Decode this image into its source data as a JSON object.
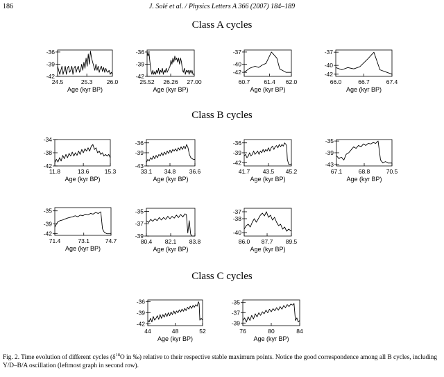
{
  "header": {
    "page_number": "186",
    "journal_ref": "J. Solé et al. / Physics Letters A 366 (2007) 184–189"
  },
  "sections": [
    {
      "id": "A",
      "title": "Class A cycles"
    },
    {
      "id": "B",
      "title": "Class B cycles"
    },
    {
      "id": "C",
      "title": "Class C cycles"
    }
  ],
  "caption": {
    "lead": "Fig. 2. Time evolution of different cycles (δ",
    "sup": "18",
    "tail": "O in ‰) relative to their respective stable maximum points. Notice the good correspondence among all B cycles, including Y/D–B/A oscillation (leftmost graph in second row)."
  },
  "chart_data": [
    {
      "type": "line",
      "section": "A",
      "xlabel": "Age (kyr BP)",
      "xlim": [
        24.5,
        26.0
      ],
      "ylim": [
        -42,
        -35.5
      ],
      "xticks": [
        24.5,
        25.3,
        26.0
      ],
      "xtick_labels": [
        "24.5",
        "25.3",
        "26.0"
      ],
      "yticks": [
        -36,
        -39,
        -42
      ],
      "ytick_labels": [
        "-36",
        "-39",
        "-42"
      ],
      "x": [
        24.5,
        24.53,
        24.56,
        24.59,
        24.62,
        24.65,
        24.68,
        24.71,
        24.74,
        24.77,
        24.8,
        24.83,
        24.86,
        24.89,
        24.92,
        24.95,
        24.98,
        25.01,
        25.04,
        25.07,
        25.1,
        25.13,
        25.16,
        25.19,
        25.22,
        25.25,
        25.28,
        25.31,
        25.34,
        25.37,
        25.4,
        25.43,
        25.46,
        25.49,
        25.52,
        25.55,
        25.58,
        25.61,
        25.64,
        25.67,
        25.7,
        25.73,
        25.76,
        25.79,
        25.82,
        25.85,
        25.88,
        25.91,
        25.94,
        25.97,
        26.0
      ],
      "y": [
        -39.5,
        -40.5,
        -41.5,
        -40.5,
        -39.5,
        -41.5,
        -40.5,
        -39.5,
        -41.5,
        -40,
        -39.5,
        -41,
        -40.5,
        -39.5,
        -41.5,
        -40,
        -39.5,
        -41,
        -40,
        -39.5,
        -41,
        -40.5,
        -39,
        -40.5,
        -38.5,
        -40,
        -37.5,
        -39.5,
        -36.5,
        -39,
        -35.8,
        -37.5,
        -38.5,
        -39.5,
        -40.5,
        -39,
        -40.5,
        -39.5,
        -41,
        -40,
        -39.5,
        -40.8,
        -39.8,
        -41,
        -40,
        -40.8,
        -41,
        -40.5,
        -41.5,
        -41,
        -41.5
      ]
    },
    {
      "type": "line",
      "section": "A",
      "xlabel": "Age (kyr BP)",
      "xlim": [
        25.52,
        27.0
      ],
      "ylim": [
        -42,
        -35.5
      ],
      "xticks": [
        25.52,
        26.26,
        27.0
      ],
      "xtick_labels": [
        "25.52",
        "26.26",
        "27.00"
      ],
      "yticks": [
        -36,
        -39,
        -42
      ],
      "ytick_labels": [
        "-36",
        "-39",
        "-42"
      ],
      "x": [
        25.52,
        25.55,
        25.58,
        25.61,
        25.64,
        25.67,
        25.7,
        25.73,
        25.76,
        25.79,
        25.82,
        25.85,
        25.88,
        25.91,
        25.94,
        25.97,
        26.0,
        26.03,
        26.06,
        26.09,
        26.12,
        26.15,
        26.18,
        26.21,
        26.24,
        26.27,
        26.3,
        26.33,
        26.36,
        26.39,
        26.42,
        26.45,
        26.48,
        26.51,
        26.54,
        26.57,
        26.6,
        26.63,
        26.66,
        26.69,
        26.72,
        26.75,
        26.78,
        26.81,
        26.84,
        26.87,
        26.9,
        26.93,
        26.96,
        27.0
      ],
      "y": [
        -36,
        -37,
        -36.2,
        -38.5,
        -40.5,
        -41.5,
        -40.5,
        -41.5,
        -40.8,
        -41.5,
        -40.5,
        -41.2,
        -40,
        -41.5,
        -40.5,
        -41,
        -40,
        -41.5,
        -40.5,
        -41,
        -40,
        -41,
        -40.5,
        -40,
        -39.5,
        -38,
        -39,
        -37.5,
        -38.5,
        -37,
        -38,
        -37.5,
        -38.5,
        -37.5,
        -39,
        -37.5,
        -38.5,
        -40.5,
        -41,
        -40,
        -41.5,
        -40.5,
        -41,
        -40.5,
        -41.5,
        -40.5,
        -41.2,
        -40.5,
        -41.5,
        -41.5
      ]
    },
    {
      "type": "line",
      "section": "A",
      "xlabel": "Age (kyr BP)",
      "xlim": [
        60.7,
        62.0
      ],
      "ylim": [
        -43,
        -36.5
      ],
      "xticks": [
        60.7,
        61.4,
        62.0
      ],
      "xtick_labels": [
        "60.7",
        "61.4",
        "62.0"
      ],
      "yticks": [
        -37,
        -40,
        -42
      ],
      "ytick_labels": [
        "-37",
        "-40",
        "-42"
      ],
      "x": [
        60.7,
        60.85,
        61.0,
        61.1,
        61.2,
        61.3,
        61.45,
        61.5,
        61.6,
        61.68,
        61.75,
        61.85,
        62.0
      ],
      "y": [
        -42,
        -41,
        -40.5,
        -40.8,
        -40.2,
        -39.8,
        -37,
        -37.5,
        -38.5,
        -41.2,
        -41.5,
        -42,
        -42
      ]
    },
    {
      "type": "line",
      "section": "A",
      "xlabel": "Age (kyr BP)",
      "xlim": [
        66.0,
        67.4
      ],
      "ylim": [
        -42.5,
        -36.5
      ],
      "xticks": [
        66.0,
        66.7,
        67.4
      ],
      "xtick_labels": [
        "66.0",
        "66.7",
        "67.4"
      ],
      "yticks": [
        -37,
        -40,
        -42
      ],
      "ytick_labels": [
        "-37",
        "-40",
        "-42"
      ],
      "x": [
        66.0,
        66.15,
        66.3,
        66.45,
        66.6,
        66.8,
        66.95,
        67.1,
        67.25,
        67.4
      ],
      "y": [
        -40.5,
        -41,
        -40.5,
        -40.8,
        -40.3,
        -38.5,
        -37,
        -41,
        -41.5,
        -42
      ]
    },
    {
      "type": "line",
      "section": "B",
      "xlabel": "Age (kyr BP)",
      "xlim": [
        11.8,
        15.3
      ],
      "ylim": [
        -42,
        -34
      ],
      "xticks": [
        11.8,
        13.6,
        15.3
      ],
      "xtick_labels": [
        "11.8",
        "13.6",
        "15.3"
      ],
      "yticks": [
        -34,
        -38,
        -42
      ],
      "ytick_labels": [
        "-34",
        "-38",
        "-42"
      ],
      "x": [
        11.8,
        11.9,
        12.0,
        12.1,
        12.2,
        12.3,
        12.4,
        12.5,
        12.6,
        12.7,
        12.8,
        12.9,
        13.0,
        13.1,
        13.2,
        13.3,
        13.4,
        13.5,
        13.6,
        13.7,
        13.8,
        13.9,
        14.0,
        14.1,
        14.2,
        14.3,
        14.4,
        14.5,
        14.6,
        14.7,
        14.8,
        14.9,
        15.0,
        15.1,
        15.2,
        15.3
      ],
      "y": [
        -41,
        -40,
        -40.8,
        -39.5,
        -40.5,
        -38.8,
        -39.8,
        -38.5,
        -39.5,
        -38.2,
        -39,
        -37.8,
        -39,
        -38,
        -38.8,
        -37.5,
        -38.5,
        -37,
        -38,
        -36.8,
        -37.5,
        -36.5,
        -37.5,
        -36,
        -35.5,
        -37,
        -36.5,
        -38,
        -37.5,
        -38.5,
        -38,
        -39,
        -38.5,
        -39,
        -38.5,
        -39.5
      ]
    },
    {
      "type": "line",
      "section": "B",
      "xlabel": "Age (kyr BP)",
      "xlim": [
        33.1,
        36.6
      ],
      "ylim": [
        -43,
        -35
      ],
      "xticks": [
        33.1,
        34.8,
        36.6
      ],
      "xtick_labels": [
        "33.1",
        "34.8",
        "36.6"
      ],
      "yticks": [
        -36,
        -39,
        -43
      ],
      "ytick_labels": [
        "-36",
        "-39",
        "-43"
      ],
      "x": [
        33.1,
        33.2,
        33.3,
        33.4,
        33.5,
        33.6,
        33.7,
        33.8,
        33.9,
        34.0,
        34.1,
        34.2,
        34.3,
        34.4,
        34.5,
        34.6,
        34.7,
        34.8,
        34.9,
        35.0,
        35.1,
        35.2,
        35.3,
        35.4,
        35.5,
        35.6,
        35.7,
        35.8,
        35.9,
        36.0,
        36.1,
        36.2,
        36.3,
        36.4,
        36.5,
        36.6
      ],
      "y": [
        -42,
        -41,
        -41.5,
        -40.5,
        -41,
        -40,
        -40.8,
        -39.8,
        -40.5,
        -39.5,
        -40,
        -39,
        -39.8,
        -38.8,
        -39.5,
        -38.5,
        -39.2,
        -38.2,
        -39,
        -38,
        -38.5,
        -37.8,
        -38.5,
        -37.5,
        -38.2,
        -37.2,
        -38,
        -37,
        -37.8,
        -36.5,
        -37.5,
        -39.5,
        -40.5,
        -40.8,
        -41,
        -41
      ]
    },
    {
      "type": "line",
      "section": "B",
      "xlabel": "Age (kyr BP)",
      "xlim": [
        41.7,
        45.2
      ],
      "ylim": [
        -43,
        -35
      ],
      "xticks": [
        41.7,
        43.5,
        45.2
      ],
      "xtick_labels": [
        "41.7",
        "43.5",
        "45.2"
      ],
      "yticks": [
        -36,
        -39,
        -42
      ],
      "ytick_labels": [
        "-36",
        "-39",
        "-42"
      ],
      "x": [
        41.7,
        41.8,
        41.9,
        42.0,
        42.1,
        42.2,
        42.3,
        42.4,
        42.5,
        42.6,
        42.7,
        42.8,
        42.9,
        43.0,
        43.1,
        43.2,
        43.3,
        43.4,
        43.5,
        43.6,
        43.7,
        43.8,
        43.9,
        44.0,
        44.1,
        44.2,
        44.3,
        44.4,
        44.5,
        44.6,
        44.7,
        44.8,
        44.85,
        44.9,
        45.0,
        45.2
      ],
      "y": [
        -40,
        -39.5,
        -40.5,
        -40,
        -39,
        -40,
        -39.5,
        -38.5,
        -39.5,
        -39,
        -38.5,
        -39.5,
        -38.5,
        -39,
        -38,
        -38.8,
        -38,
        -38.5,
        -37.5,
        -38.5,
        -37.5,
        -37,
        -38,
        -37.2,
        -36.8,
        -37.5,
        -36.5,
        -37.2,
        -36.5,
        -37,
        -36,
        -36.5,
        -37,
        -41,
        -42.5,
        -42.5
      ]
    },
    {
      "type": "line",
      "section": "B",
      "xlabel": "Age (kyr BP)",
      "xlim": [
        67.1,
        70.5
      ],
      "ylim": [
        -43.5,
        -34.5
      ],
      "xticks": [
        67.1,
        68.8,
        70.5
      ],
      "xtick_labels": [
        "67.1",
        "68.8",
        "70.5"
      ],
      "yticks": [
        -35,
        -39,
        -43
      ],
      "ytick_labels": [
        "-35",
        "-39",
        "-43"
      ],
      "x": [
        67.1,
        67.25,
        67.4,
        67.55,
        67.7,
        67.85,
        68.0,
        68.15,
        68.3,
        68.45,
        68.6,
        68.75,
        68.9,
        69.05,
        69.2,
        69.35,
        69.5,
        69.65,
        69.8,
        69.95,
        70.1,
        70.25,
        70.4,
        70.5
      ],
      "y": [
        -40,
        -41,
        -40.5,
        -41.5,
        -39.5,
        -39,
        -38,
        -37,
        -37.5,
        -36.5,
        -37,
        -36,
        -36.5,
        -35.8,
        -36,
        -35.5,
        -35.8,
        -35,
        -41.5,
        -42.5,
        -42,
        -42.5,
        -42.5,
        -42.5
      ]
    },
    {
      "type": "line",
      "section": "B",
      "xlabel": "Age (kyr BP)",
      "xlim": [
        71.4,
        74.7
      ],
      "ylim": [
        -42.5,
        -34
      ],
      "xticks": [
        71.4,
        73.1,
        74.7
      ],
      "xtick_labels": [
        "71.4",
        "73.1",
        "74.7"
      ],
      "yticks": [
        -35,
        -39,
        -42
      ],
      "ytick_labels": [
        "-35",
        "-39",
        "-42"
      ],
      "x": [
        71.4,
        71.55,
        71.7,
        71.85,
        72.0,
        72.15,
        72.3,
        72.45,
        72.6,
        72.75,
        72.9,
        73.05,
        73.2,
        73.35,
        73.5,
        73.65,
        73.8,
        73.95,
        74.1,
        74.2,
        74.3,
        74.45,
        74.6,
        74.7
      ],
      "y": [
        -40,
        -38.5,
        -38,
        -37.8,
        -37.5,
        -37.2,
        -37,
        -36.8,
        -36.5,
        -36.8,
        -36.3,
        -36.5,
        -36,
        -36.2,
        -35.8,
        -36,
        -35.5,
        -35.8,
        -35.3,
        -40.5,
        -41.5,
        -42,
        -42,
        -42
      ]
    },
    {
      "type": "line",
      "section": "B",
      "xlabel": "Age (kyr BP)",
      "xlim": [
        80.4,
        83.8
      ],
      "ylim": [
        -39,
        -34.5
      ],
      "xticks": [
        80.4,
        82.1,
        83.8
      ],
      "xtick_labels": [
        "80.4",
        "82.1",
        "83.8"
      ],
      "yticks": [
        -35,
        -37,
        -39
      ],
      "ytick_labels": [
        "-35",
        "-37",
        "-39"
      ],
      "x": [
        80.4,
        80.55,
        80.7,
        80.85,
        81.0,
        81.15,
        81.3,
        81.45,
        81.6,
        81.75,
        81.9,
        82.05,
        82.2,
        82.35,
        82.5,
        82.65,
        82.8,
        82.95,
        83.1,
        83.2,
        83.3,
        83.4,
        83.5,
        83.6,
        83.8
      ],
      "y": [
        -36.5,
        -36.8,
        -36.3,
        -36.6,
        -36.2,
        -36.5,
        -36,
        -36.4,
        -36,
        -36.3,
        -35.8,
        -36.2,
        -35.8,
        -36.1,
        -35.6,
        -36,
        -35.5,
        -35.9,
        -35.4,
        -35.5,
        -38.5,
        -36.5,
        -38.7,
        -39,
        -39
      ]
    },
    {
      "type": "line",
      "section": "B",
      "xlabel": "Age (kyr BP)",
      "xlim": [
        86.0,
        89.5
      ],
      "ylim": [
        -40.5,
        -36.5
      ],
      "xticks": [
        86.0,
        87.7,
        89.5
      ],
      "xtick_labels": [
        "86.0",
        "87.7",
        "89.5"
      ],
      "yticks": [
        -37,
        -38,
        -40
      ],
      "ytick_labels": [
        "-37",
        "-38",
        "-40"
      ],
      "x": [
        86.0,
        86.15,
        86.3,
        86.45,
        86.6,
        86.75,
        86.9,
        87.05,
        87.2,
        87.35,
        87.5,
        87.65,
        87.8,
        87.95,
        88.1,
        88.25,
        88.4,
        88.55,
        88.7,
        88.85,
        89.0,
        89.15,
        89.3,
        89.5
      ],
      "y": [
        -39.5,
        -39,
        -38.8,
        -39.2,
        -38.5,
        -38,
        -38.5,
        -38,
        -37.5,
        -37.2,
        -37.6,
        -37,
        -37.8,
        -37.5,
        -38.2,
        -37.8,
        -38.5,
        -39,
        -38.8,
        -39.5,
        -39.2,
        -39.8,
        -39.5,
        -39.8
      ]
    },
    {
      "type": "line",
      "section": "C",
      "xlabel": "Age (kyr BP)",
      "xlim": [
        44,
        52
      ],
      "ylim": [
        -42.5,
        -35.5
      ],
      "xticks": [
        44,
        48,
        52
      ],
      "xtick_labels": [
        "44",
        "48",
        "52"
      ],
      "yticks": [
        -36,
        -39,
        -42
      ],
      "ytick_labels": [
        "-36",
        "-39",
        "-42"
      ],
      "x": [
        44.0,
        44.2,
        44.4,
        44.6,
        44.8,
        45.0,
        45.2,
        45.4,
        45.6,
        45.8,
        46.0,
        46.2,
        46.4,
        46.6,
        46.8,
        47.0,
        47.2,
        47.4,
        47.6,
        47.8,
        48.0,
        48.2,
        48.4,
        48.6,
        48.8,
        49.0,
        49.2,
        49.4,
        49.6,
        49.8,
        50.0,
        50.2,
        50.4,
        50.6,
        50.8,
        51.0,
        51.2,
        51.4,
        51.5,
        51.6,
        51.8,
        52.0
      ],
      "y": [
        -41,
        -41.5,
        -40.5,
        -41.5,
        -40,
        -41,
        -40.5,
        -39.8,
        -40.8,
        -39.5,
        -40.5,
        -39.5,
        -40.2,
        -39.2,
        -40,
        -39,
        -39.8,
        -38.8,
        -39.5,
        -38.5,
        -39.3,
        -38.5,
        -39,
        -38.2,
        -38.8,
        -38,
        -38.6,
        -37.8,
        -38.4,
        -37.5,
        -38,
        -37.2,
        -37.8,
        -37,
        -37.5,
        -36.8,
        -37.2,
        -36,
        -36.5,
        -41,
        -40.5,
        -41
      ]
    },
    {
      "type": "line",
      "section": "C",
      "xlabel": "Age (kyr BP)",
      "xlim": [
        76,
        84
      ],
      "ylim": [
        -39.5,
        -34.5
      ],
      "xticks": [
        76,
        80,
        84
      ],
      "xtick_labels": [
        "76",
        "80",
        "84"
      ],
      "yticks": [
        -35,
        -37,
        -39
      ],
      "ytick_labels": [
        "-35",
        "-37",
        "-39"
      ],
      "x": [
        76.0,
        76.25,
        76.5,
        76.75,
        77.0,
        77.25,
        77.5,
        77.75,
        78.0,
        78.25,
        78.5,
        78.75,
        79.0,
        79.25,
        79.5,
        79.75,
        80.0,
        80.25,
        80.5,
        80.75,
        81.0,
        81.25,
        81.5,
        81.75,
        82.0,
        82.25,
        82.5,
        82.75,
        83.0,
        83.2,
        83.4,
        83.6,
        83.8,
        84.0
      ],
      "y": [
        -38.5,
        -38,
        -38.8,
        -37.8,
        -38.5,
        -37.5,
        -38.2,
        -37.2,
        -37.8,
        -37,
        -37.5,
        -36.8,
        -37.2,
        -36.5,
        -37,
        -36.3,
        -36.8,
        -36.2,
        -36.6,
        -36,
        -36.5,
        -35.8,
        -36.3,
        -35.6,
        -36,
        -35.4,
        -35.8,
        -35.3,
        -35.5,
        -35.2,
        -38.5,
        -38,
        -38.8,
        -38.5
      ]
    }
  ]
}
